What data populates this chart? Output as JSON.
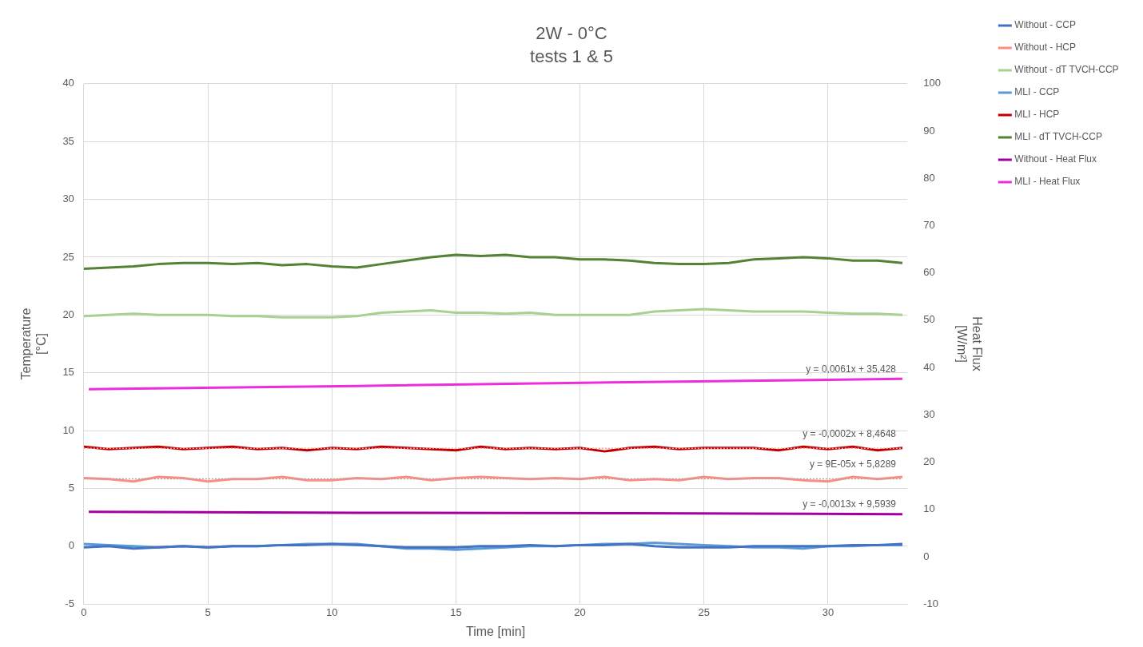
{
  "chart_data": {
    "type": "line",
    "title": "2W - 0°C",
    "subtitle": "tests 1 & 5",
    "xlabel": "Time [min]",
    "ylabel": "Temperature [°C]",
    "y2label": "Heat Flux [W/m²]",
    "x": [
      0,
      1,
      2,
      3,
      4,
      5,
      6,
      7,
      8,
      9,
      10,
      11,
      12,
      13,
      14,
      15,
      16,
      17,
      18,
      19,
      20,
      21,
      22,
      23,
      24,
      25,
      26,
      27,
      28,
      29,
      30,
      31,
      32,
      33
    ],
    "xlim": [
      0,
      33.2
    ],
    "xticks": [
      0,
      5,
      10,
      15,
      20,
      25,
      30
    ],
    "ylim": [
      -5,
      40
    ],
    "yticks": [
      -5,
      0,
      5,
      10,
      15,
      20,
      25,
      30,
      35,
      40
    ],
    "y2lim": [
      -10,
      100
    ],
    "y2ticks": [
      -10,
      0,
      10,
      20,
      30,
      40,
      50,
      60,
      70,
      80,
      90,
      100
    ],
    "grid": true,
    "legend": "right",
    "marker": "none",
    "line_style": "solid",
    "series": [
      {
        "name": "Without - CCP",
        "color": "#4472c4",
        "values": [
          -0.1,
          0.0,
          -0.2,
          -0.1,
          0.0,
          -0.1,
          0.0,
          0.0,
          0.1,
          0.1,
          0.2,
          0.1,
          0.0,
          -0.1,
          -0.1,
          -0.1,
          0.0,
          0.0,
          0.1,
          0.0,
          0.1,
          0.1,
          0.2,
          0.0,
          -0.1,
          -0.1,
          -0.1,
          0.0,
          0.0,
          0.0,
          0.0,
          0.1,
          0.1,
          0.2
        ]
      },
      {
        "name": "Without - HCP",
        "color": "#ff8c82",
        "values": [
          5.9,
          5.8,
          5.6,
          6.0,
          5.9,
          5.6,
          5.8,
          5.8,
          6.0,
          5.7,
          5.7,
          5.9,
          5.8,
          6.0,
          5.7,
          5.9,
          6.0,
          5.9,
          5.8,
          5.9,
          5.8,
          6.0,
          5.7,
          5.8,
          5.7,
          6.0,
          5.8,
          5.9,
          5.9,
          5.7,
          5.6,
          6.0,
          5.8,
          6.0
        ]
      },
      {
        "name": "Without - dT TVCH-CCP",
        "color": "#a9d18e",
        "values": [
          19.9,
          20.0,
          20.1,
          20.0,
          20.0,
          20.0,
          19.9,
          19.9,
          19.8,
          19.8,
          19.8,
          19.9,
          20.2,
          20.3,
          20.4,
          20.2,
          20.2,
          20.1,
          20.2,
          20.0,
          20.0,
          20.0,
          20.0,
          20.3,
          20.4,
          20.5,
          20.4,
          20.3,
          20.3,
          20.3,
          20.2,
          20.1,
          20.1,
          20.0
        ]
      },
      {
        "name": "MLI - CCP",
        "color": "#5b9bd5",
        "values": [
          0.2,
          0.1,
          0.0,
          -0.1,
          0.0,
          -0.1,
          0.0,
          0.0,
          0.1,
          0.2,
          0.2,
          0.2,
          0.0,
          -0.2,
          -0.2,
          -0.3,
          -0.2,
          -0.1,
          0.0,
          0.0,
          0.1,
          0.2,
          0.2,
          0.3,
          0.2,
          0.1,
          0.0,
          -0.1,
          -0.1,
          -0.2,
          0.0,
          0.0,
          0.1,
          0.1
        ]
      },
      {
        "name": "MLI - HCP",
        "color": "#c00000",
        "values": [
          8.6,
          8.4,
          8.5,
          8.6,
          8.4,
          8.5,
          8.6,
          8.4,
          8.5,
          8.3,
          8.5,
          8.4,
          8.6,
          8.5,
          8.4,
          8.3,
          8.6,
          8.4,
          8.5,
          8.4,
          8.5,
          8.2,
          8.5,
          8.6,
          8.4,
          8.5,
          8.5,
          8.5,
          8.3,
          8.6,
          8.4,
          8.6,
          8.3,
          8.5
        ]
      },
      {
        "name": "MLI - dT TVCH-CCP",
        "color": "#548235",
        "values": [
          24.0,
          24.1,
          24.2,
          24.4,
          24.5,
          24.5,
          24.4,
          24.5,
          24.3,
          24.4,
          24.2,
          24.1,
          24.4,
          24.7,
          25.0,
          25.2,
          25.1,
          25.2,
          25.0,
          25.0,
          24.8,
          24.8,
          24.7,
          24.5,
          24.4,
          24.4,
          24.5,
          24.8,
          24.9,
          25.0,
          24.9,
          24.7,
          24.7,
          24.5
        ]
      },
      {
        "name": "Without - Heat Flux",
        "color": "#a5009f",
        "axis": "y2",
        "x": [
          0.2,
          11,
          22,
          33
        ],
        "values": [
          9.5,
          9.3,
          9.2,
          9.0
        ]
      },
      {
        "name": "MLI - Heat Flux",
        "color": "#ee2cdc",
        "axis": "y2",
        "x": [
          0.2,
          11,
          22,
          33
        ],
        "values": [
          35.4,
          36.1,
          36.9,
          37.6
        ]
      },
      {
        "type": "line",
        "color": "#f4a09a",
        "line_style": "dotted",
        "x": [
          0,
          33
        ],
        "values": [
          8.46,
          8.46
        ]
      },
      {
        "type": "line",
        "color": "#a6a6a6",
        "line_style": "dotted",
        "x": [
          0,
          33
        ],
        "values": [
          5.83,
          5.83
        ]
      }
    ],
    "annotations": [
      "y = 0,0061x + 35,428",
      {
        "text": "y = -0,0002x + 8,4648",
        "x": 33,
        "y": 8.46
      },
      {
        "text": "y = 9E-05x + 5,8289",
        "x": 33,
        "y": 5.83
      },
      "y = -0,0013x + 9,5939"
    ]
  }
}
